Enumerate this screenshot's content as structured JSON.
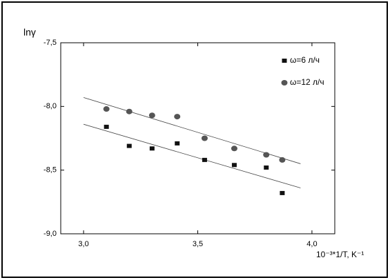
{
  "chart_data": {
    "type": "scatter",
    "y_label": "lnγ",
    "x_label": "10⁻³*1/T, K⁻¹",
    "xlim": [
      2.9,
      4.1
    ],
    "xticks": [
      {
        "value": 3.0,
        "label": "3,0"
      },
      {
        "value": 3.5,
        "label": "3,5"
      },
      {
        "value": 4.0,
        "label": "4,0"
      }
    ],
    "ylim": [
      -9.0,
      -7.5
    ],
    "yticks": [
      {
        "value": -7.5,
        "label": "-7,5"
      },
      {
        "value": -8.0,
        "label": "-8,0"
      },
      {
        "value": -8.5,
        "label": "-8,5"
      },
      {
        "value": -9.0,
        "label": "-9,0"
      }
    ],
    "legend": "upper right",
    "series": [
      {
        "name": "ω=6 л/ч",
        "color": "#111111",
        "marker": "square",
        "x": [
          3.1,
          3.2,
          3.3,
          3.41,
          3.53,
          3.66,
          3.8,
          3.87
        ],
        "values": [
          -8.16,
          -8.31,
          -8.33,
          -8.29,
          -8.42,
          -8.46,
          -8.48,
          -8.68
        ],
        "trend": {
          "x": [
            3.0,
            3.95
          ],
          "y": [
            -8.14,
            -8.64
          ]
        }
      },
      {
        "name": "ω=12 л/ч",
        "color": "#555555",
        "marker": "circle",
        "x": [
          3.1,
          3.2,
          3.3,
          3.41,
          3.53,
          3.66,
          3.8,
          3.87
        ],
        "values": [
          -8.02,
          -8.04,
          -8.07,
          -8.08,
          -8.25,
          -8.33,
          -8.38,
          -8.42
        ],
        "trend": {
          "x": [
            3.0,
            3.95
          ],
          "y": [
            -7.93,
            -8.45
          ]
        }
      }
    ]
  }
}
